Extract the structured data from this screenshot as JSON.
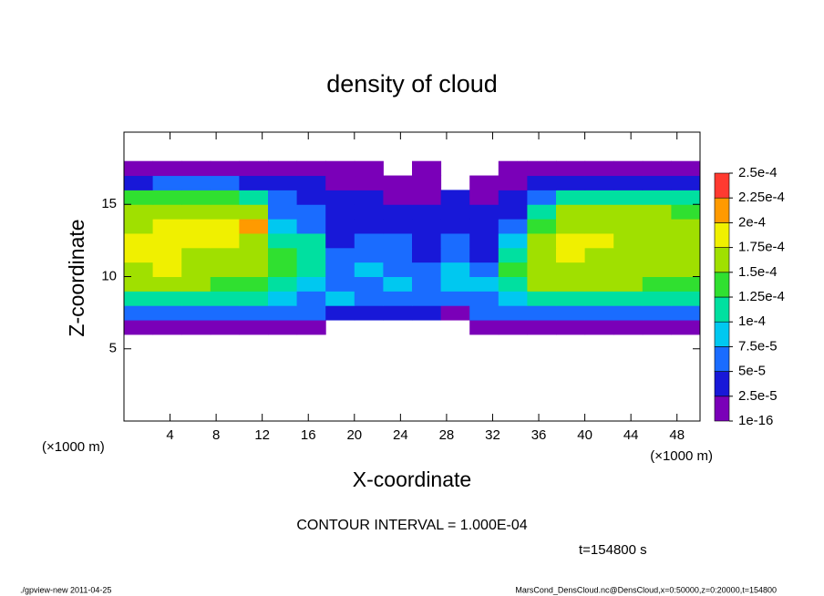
{
  "chart_data": {
    "type": "heatmap",
    "title": "density of cloud",
    "x_label": "X-coordinate",
    "y_label": "Z-coordinate",
    "x_unit_left": "(×1000 m)",
    "x_unit_right": "(×1000 m)",
    "contour_note": "CONTOUR INTERVAL = 1.000E-04",
    "time_note": "t=154800 s",
    "footer_left": "./gpview-new  2011-04-25",
    "footer_right": "MarsCond_DensCloud.nc@DensCloud,x=0:50000,z=0:20000,t=154800",
    "xlim": [
      0,
      50
    ],
    "ylim": [
      0,
      20
    ],
    "xticks": [
      4,
      8,
      12,
      16,
      20,
      24,
      28,
      32,
      36,
      40,
      44,
      48
    ],
    "yticks": [
      5,
      10,
      15
    ],
    "x_edges": [
      0,
      2.5,
      5,
      7.5,
      10,
      12.5,
      15,
      17.5,
      20,
      22.5,
      25,
      27.5,
      30,
      32.5,
      35,
      37.5,
      40,
      42.5,
      45,
      47.5,
      50
    ],
    "z_edges": [
      6,
      7,
      8,
      9,
      10,
      11,
      12,
      13,
      14,
      15,
      16,
      17,
      18
    ],
    "values": [
      [
        2e-05,
        2e-05,
        2e-05,
        2e-05,
        2e-05,
        2e-05,
        1e-05,
        null,
        null,
        null,
        null,
        null,
        1e-05,
        2e-05,
        2e-05,
        2e-05,
        2e-05,
        2e-05,
        2e-05,
        2e-05
      ],
      [
        6e-05,
        6e-05,
        6e-05,
        6e-05,
        5e-05,
        6e-05,
        5e-05,
        4e-05,
        3e-05,
        3e-05,
        4e-05,
        2e-05,
        5e-05,
        6e-05,
        6e-05,
        6e-05,
        6e-05,
        6e-05,
        6e-05,
        6e-05
      ],
      [
        0.00011,
        0.00011,
        0.00011,
        0.0001,
        0.0001,
        9e-05,
        6e-05,
        8e-05,
        6e-05,
        5e-05,
        6e-05,
        5e-05,
        7e-05,
        9e-05,
        0.00011,
        0.00011,
        0.00011,
        0.00011,
        0.00011,
        0.00011
      ],
      [
        0.00015,
        0.00016,
        0.00015,
        0.00014,
        0.00013,
        0.00012,
        8e-05,
        7e-05,
        5e-05,
        9e-05,
        6e-05,
        8e-05,
        9e-05,
        0.00012,
        0.00015,
        0.00015,
        0.00015,
        0.00015,
        0.00014,
        0.00014
      ],
      [
        0.00017,
        0.00018,
        0.00017,
        0.00016,
        0.00015,
        0.00013,
        0.0001,
        6e-05,
        8e-05,
        6e-05,
        5e-05,
        9e-05,
        7e-05,
        0.00013,
        0.00017,
        0.00017,
        0.00016,
        0.00016,
        0.00015,
        0.00015
      ],
      [
        0.00018,
        0.00018,
        0.00017,
        0.00017,
        0.00015,
        0.00013,
        0.00012,
        5e-05,
        7e-05,
        6e-05,
        4e-05,
        6e-05,
        4e-05,
        0.00011,
        0.00017,
        0.00018,
        0.00017,
        0.00017,
        0.00016,
        0.00016
      ],
      [
        0.00018,
        0.00019,
        0.00018,
        0.00018,
        0.00016,
        0.00012,
        0.0001,
        4e-05,
        5e-05,
        5e-05,
        4e-05,
        5e-05,
        4e-05,
        9e-05,
        0.00017,
        0.00018,
        0.00018,
        0.00017,
        0.00017,
        0.00016
      ],
      [
        0.00017,
        0.00018,
        0.00018,
        0.00019,
        0.00022,
        9e-05,
        6e-05,
        4e-05,
        4e-05,
        3e-05,
        4e-05,
        4e-05,
        4e-05,
        6e-05,
        0.00014,
        0.00017,
        0.00017,
        0.00017,
        0.00016,
        0.00016
      ],
      [
        0.00016,
        0.00017,
        0.00017,
        0.00017,
        0.00015,
        7e-05,
        5e-05,
        3e-05,
        3e-05,
        3e-05,
        3e-05,
        3e-05,
        3e-05,
        4e-05,
        0.0001,
        0.00015,
        0.00015,
        0.00015,
        0.00015,
        0.00014
      ],
      [
        0.00013,
        0.00014,
        0.00013,
        0.00014,
        0.00011,
        5e-05,
        4e-05,
        3e-05,
        3e-05,
        2e-05,
        2e-05,
        3e-05,
        2e-05,
        3e-05,
        6e-05,
        0.00011,
        0.00012,
        0.00012,
        0.00012,
        0.00011
      ],
      [
        4e-05,
        5e-05,
        5e-05,
        5e-05,
        4e-05,
        3e-05,
        3e-05,
        2e-05,
        2e-05,
        2e-05,
        1e-05,
        null,
        2e-05,
        2e-05,
        3e-05,
        4e-05,
        4e-05,
        4e-05,
        4e-05,
        4e-05
      ],
      [
        1e-05,
        1e-05,
        1e-05,
        1e-05,
        1e-05,
        1e-05,
        1e-05,
        1e-05,
        1e-05,
        null,
        1e-05,
        null,
        null,
        1e-05,
        1e-05,
        1e-05,
        1e-05,
        1e-05,
        1e-05,
        1e-05
      ]
    ],
    "colorbar": {
      "ticks": [
        {
          "value": 1e-16,
          "label": "1e-16"
        },
        {
          "value": 2.5e-05,
          "label": "2.5e-5"
        },
        {
          "value": 5e-05,
          "label": "5e-5"
        },
        {
          "value": 7.5e-05,
          "label": "7.5e-5"
        },
        {
          "value": 0.0001,
          "label": "1e-4"
        },
        {
          "value": 0.000125,
          "label": "1.25e-4"
        },
        {
          "value": 0.00015,
          "label": "1.5e-4"
        },
        {
          "value": 0.000175,
          "label": "1.75e-4"
        },
        {
          "value": 0.0002,
          "label": "2e-4"
        },
        {
          "value": 0.000225,
          "label": "2.25e-4"
        },
        {
          "value": 0.00025,
          "label": "2.5e-4"
        }
      ],
      "colors": [
        "#7a00b8",
        "#1818d8",
        "#1a6cff",
        "#00c8f0",
        "#00e0a0",
        "#30e030",
        "#a0e000",
        "#f0f000",
        "#ff9a00",
        "#ff3a30"
      ]
    }
  }
}
